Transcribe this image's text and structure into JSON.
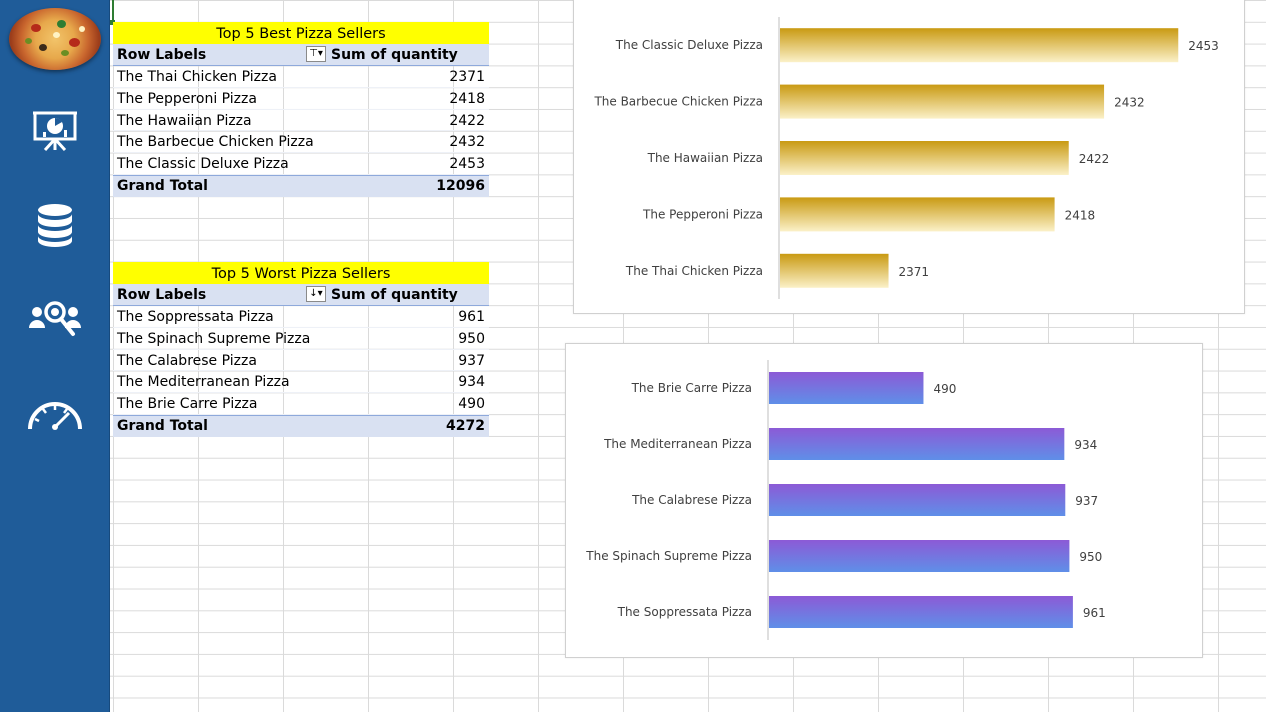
{
  "sidebar": {
    "icons": [
      "presentation-chart-icon",
      "database-icon",
      "users-search-icon",
      "speedometer-icon"
    ]
  },
  "best_sellers": {
    "title": "Top 5 Best Pizza Sellers",
    "header": {
      "row_labels": "Row Labels",
      "value_label": "Sum of quantity"
    },
    "rows": [
      {
        "label": "The Thai Chicken Pizza",
        "value": "2371"
      },
      {
        "label": "The Pepperoni Pizza",
        "value": "2418"
      },
      {
        "label": "The Hawaiian Pizza",
        "value": "2422"
      },
      {
        "label": "The Barbecue Chicken Pizza",
        "value": "2432"
      },
      {
        "label": "The Classic Deluxe Pizza",
        "value": "2453"
      }
    ],
    "total": {
      "label": "Grand Total",
      "value": "12096"
    }
  },
  "worst_sellers": {
    "title": "Top 5 Worst Pizza Sellers",
    "header": {
      "row_labels": "Row Labels",
      "value_label": "Sum of quantity"
    },
    "rows": [
      {
        "label": "The Soppressata Pizza",
        "value": "961"
      },
      {
        "label": "The Spinach Supreme Pizza",
        "value": "950"
      },
      {
        "label": "The Calabrese Pizza",
        "value": "937"
      },
      {
        "label": "The Mediterranean Pizza",
        "value": "934"
      },
      {
        "label": "The Brie Carre Pizza",
        "value": "490"
      }
    ],
    "total": {
      "label": "Grand Total",
      "value": "4272"
    }
  },
  "chart_data": [
    {
      "type": "bar",
      "orientation": "horizontal",
      "categories": [
        "The Classic Deluxe Pizza",
        "The Barbecue Chicken Pizza",
        "The Hawaiian Pizza",
        "The Pepperoni Pizza",
        "The Thai Chicken Pizza"
      ],
      "values": [
        2453,
        2432,
        2422,
        2418,
        2371
      ],
      "xlim": [
        2340,
        2460
      ],
      "data_labels": true,
      "grid": false,
      "colors": {
        "start": "#c99a12",
        "end": "#fbf1c8"
      }
    },
    {
      "type": "bar",
      "orientation": "horizontal",
      "categories": [
        "The Brie Carre Pizza",
        "The Mediterranean Pizza",
        "The Calabrese Pizza",
        "The Spinach Supreme Pizza",
        "The Soppressata Pizza"
      ],
      "values": [
        490,
        934,
        937,
        950,
        961
      ],
      "xlim": [
        0,
        1100
      ],
      "data_labels": true,
      "grid": false,
      "colors": {
        "start": "#8c5ad6",
        "end": "#5f8fe8"
      }
    }
  ]
}
